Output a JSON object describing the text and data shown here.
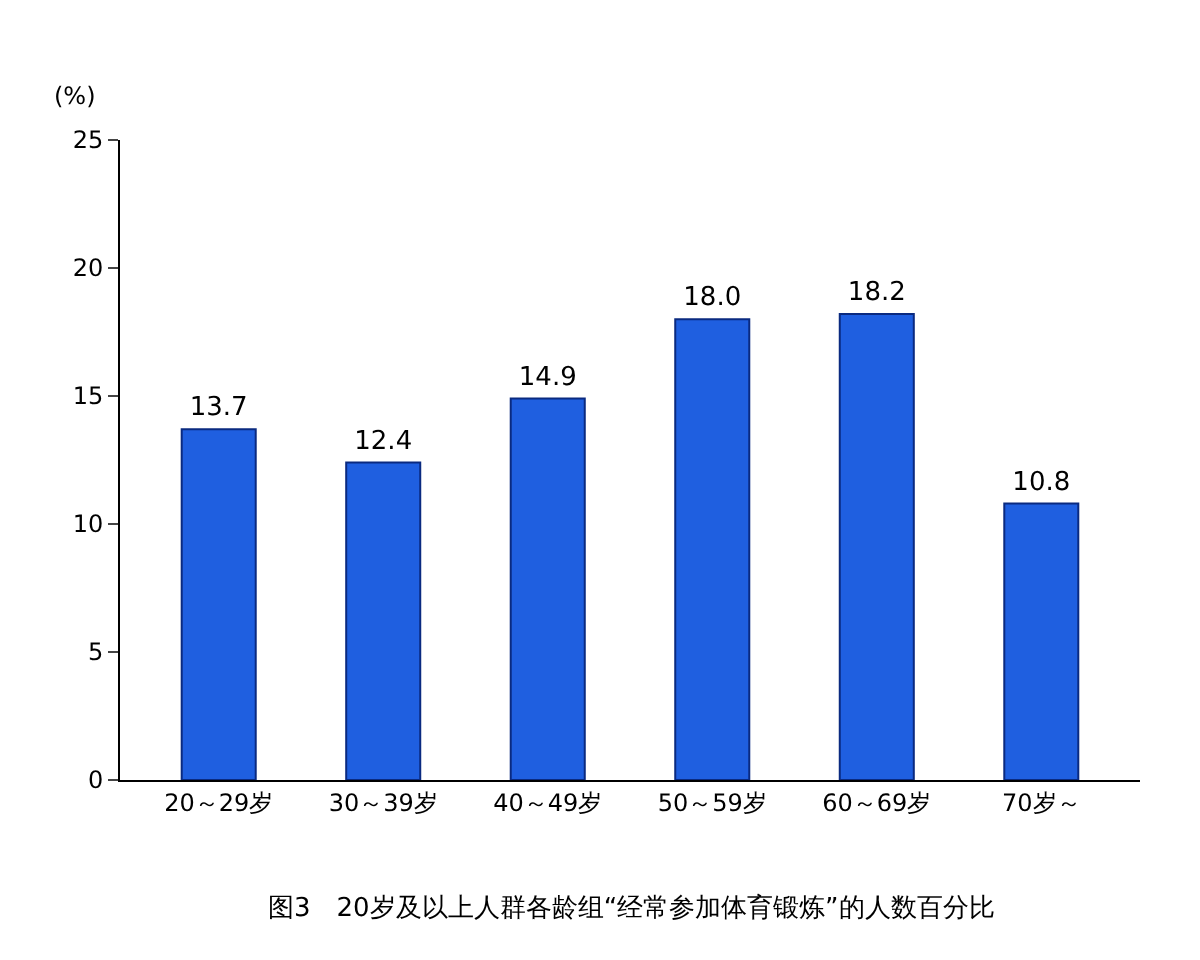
{
  "chart_data": {
    "type": "bar",
    "title": "图3　20岁及以上人群各龄组“经常参加体育锻炼”的人数百分比",
    "ylabel": "(%)",
    "categories": [
      "20～29岁",
      "30～39岁",
      "40～49岁",
      "50～59岁",
      "60～69岁",
      "70岁～"
    ],
    "values": [
      13.7,
      12.4,
      14.9,
      18.0,
      18.2,
      10.8
    ],
    "value_labels": [
      "13.7",
      "12.4",
      "14.9",
      "18.0",
      "18.2",
      "10.8"
    ],
    "color": "#1f5fe0",
    "ylim": [
      0,
      25
    ],
    "yticks": [
      0,
      5,
      10,
      15,
      20,
      25
    ]
  }
}
